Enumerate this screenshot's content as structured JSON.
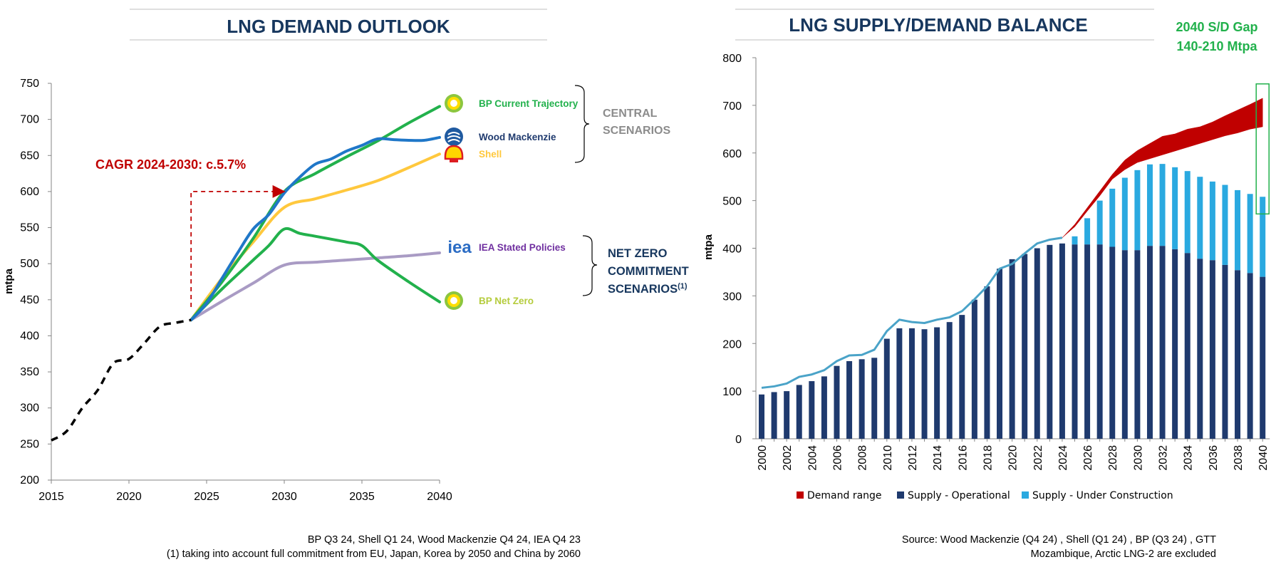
{
  "charts": [
    {
      "title": "LNG DEMAND OUTLOOK",
      "ylabel": "mtpa",
      "cagr_label": "CAGR 2024-2030: c.5.7%",
      "central_label": [
        "CENTRAL",
        "SCENARIOS"
      ],
      "netzero_label": [
        "NET ZERO",
        "COMMITMENT",
        "SCENARIOS",
        "(1)"
      ],
      "footnotes": [
        "BP Q3 24, Shell Q1 24, Wood Mackenzie Q4 24, IEA Q4 23",
        "(1) taking into account full commitment from EU, Japan, Korea by 2050 and China by 2060"
      ]
    },
    {
      "title": "LNG SUPPLY/DEMAND BALANCE",
      "ylabel": "mtpa",
      "gap_label": [
        "2040 S/D Gap",
        "140-210 Mtpa"
      ],
      "legend": [
        "Demand range",
        "Supply - Operational",
        "Supply - Under Construction"
      ],
      "footnotes": [
        "Source: Wood Mackenzie (Q4 24) , Shell (Q1 24) , BP (Q3 24) , GTT",
        "Mozambique, Arctic LNG-2 are excluded"
      ]
    }
  ],
  "chart_data": [
    {
      "type": "line",
      "title": "LNG DEMAND OUTLOOK",
      "xlabel": "",
      "ylabel": "mtpa",
      "xlim": [
        2015,
        2040
      ],
      "ylim": [
        200,
        750
      ],
      "xticks": [
        2015,
        2020,
        2025,
        2030,
        2035,
        2040
      ],
      "yticks": [
        200,
        250,
        300,
        350,
        400,
        450,
        500,
        550,
        600,
        650,
        700,
        750
      ],
      "grid": false,
      "series": [
        {
          "name": "",
          "style": "dashed",
          "color": "#000000",
          "x": [
            2015,
            2016,
            2017,
            2018,
            2019,
            2020,
            2021,
            2022,
            2023,
            2024
          ],
          "y": [
            255,
            268,
            300,
            325,
            362,
            368,
            390,
            413,
            418,
            422
          ]
        },
        {
          "name": "BP Current Trajectory",
          "color": "#22b14c",
          "x": [
            2024,
            2026,
            2028,
            2030,
            2032,
            2034,
            2036,
            2038,
            2040
          ],
          "y": [
            422,
            475,
            535,
            600,
            625,
            648,
            670,
            695,
            718
          ]
        },
        {
          "name": "Wood Mackenzie",
          "color": "#1f77c8",
          "x": [
            2024,
            2025,
            2026,
            2027,
            2028,
            2029,
            2030,
            2031,
            2032,
            2033,
            2034,
            2035,
            2036,
            2037,
            2038,
            2039,
            2040
          ],
          "y": [
            422,
            445,
            480,
            515,
            548,
            568,
            598,
            620,
            638,
            645,
            656,
            664,
            673,
            672,
            671,
            671,
            675
          ]
        },
        {
          "name": "Shell",
          "color": "#ffc83d",
          "x": [
            2024,
            2026,
            2028,
            2030,
            2032,
            2034,
            2036,
            2038,
            2040
          ],
          "y": [
            422,
            480,
            530,
            578,
            590,
            602,
            615,
            633,
            652
          ]
        },
        {
          "name": "IEA Stated Policies",
          "color": "#a99bc4",
          "x": [
            2024,
            2026,
            2028,
            2030,
            2032,
            2034,
            2036,
            2038,
            2040
          ],
          "y": [
            422,
            448,
            473,
            498,
            502,
            505,
            508,
            511,
            515
          ]
        },
        {
          "name": "BP Net Zero",
          "color": "#22b14c",
          "x": [
            2024,
            2026,
            2028,
            2029,
            2030,
            2031,
            2032,
            2034,
            2035,
            2036,
            2038,
            2040
          ],
          "y": [
            422,
            465,
            505,
            525,
            548,
            542,
            538,
            530,
            525,
            505,
            475,
            447
          ]
        }
      ],
      "annotations": [
        {
          "text": "CAGR 2024-2030: c.5.7%",
          "arrow_from": [
            2024,
            440
          ],
          "corner": [
            2024,
            600
          ],
          "arrow_to": [
            2030,
            600
          ]
        },
        {
          "text": "CENTRAL SCENARIOS",
          "groups": [
            "BP Current Trajectory",
            "Wood Mackenzie",
            "Shell"
          ]
        },
        {
          "text": "NET ZERO COMMITMENT SCENARIOS(1)",
          "groups": [
            "IEA Stated Policies",
            "BP Net Zero"
          ]
        }
      ]
    },
    {
      "type": "bar",
      "title": "LNG SUPPLY/DEMAND BALANCE",
      "xlabel": "",
      "ylabel": "mtpa",
      "ylim": [
        0,
        800
      ],
      "yticks": [
        0,
        100,
        200,
        300,
        400,
        500,
        600,
        700,
        800
      ],
      "stacked": true,
      "grid": false,
      "legend_position": "bottom",
      "categories": [
        2000,
        2001,
        2002,
        2003,
        2004,
        2005,
        2006,
        2007,
        2008,
        2009,
        2010,
        2011,
        2012,
        2013,
        2014,
        2015,
        2016,
        2017,
        2018,
        2019,
        2020,
        2021,
        2022,
        2023,
        2024,
        2025,
        2026,
        2027,
        2028,
        2029,
        2030,
        2031,
        2032,
        2033,
        2034,
        2035,
        2036,
        2037,
        2038,
        2039,
        2040
      ],
      "xticks": [
        2000,
        2002,
        2004,
        2006,
        2008,
        2010,
        2012,
        2014,
        2016,
        2018,
        2020,
        2022,
        2024,
        2026,
        2028,
        2030,
        2032,
        2034,
        2036,
        2038,
        2040
      ],
      "series": [
        {
          "name": "Supply - Operational",
          "color": "#1f3a6e",
          "values": [
            93,
            98,
            100,
            113,
            121,
            131,
            153,
            163,
            167,
            170,
            210,
            232,
            232,
            230,
            234,
            245,
            260,
            292,
            320,
            357,
            377,
            388,
            400,
            407,
            410,
            408,
            408,
            408,
            403,
            396,
            396,
            405,
            405,
            398,
            390,
            378,
            375,
            365,
            354,
            348,
            340
          ]
        },
        {
          "name": "Supply - Under Construction",
          "color": "#2aa9e0",
          "values": [
            0,
            0,
            0,
            0,
            0,
            0,
            0,
            0,
            0,
            0,
            0,
            0,
            0,
            0,
            0,
            0,
            0,
            0,
            0,
            0,
            0,
            0,
            0,
            0,
            0,
            17,
            55,
            92,
            122,
            152,
            168,
            171,
            172,
            172,
            172,
            172,
            165,
            168,
            168,
            166,
            168
          ]
        }
      ],
      "lines": [
        {
          "name": "",
          "color": "#4aa3c8",
          "x": [
            2000,
            2001,
            2002,
            2003,
            2004,
            2005,
            2006,
            2007,
            2008,
            2009,
            2010,
            2011,
            2012,
            2013,
            2014,
            2015,
            2016,
            2017,
            2018,
            2019,
            2020,
            2021,
            2022,
            2023,
            2024
          ],
          "y": [
            107,
            110,
            116,
            130,
            135,
            144,
            163,
            175,
            176,
            187,
            226,
            250,
            245,
            243,
            250,
            255,
            268,
            293,
            320,
            357,
            367,
            389,
            410,
            418,
            422
          ]
        }
      ],
      "demand_range": {
        "name": "Demand range",
        "color": "#c00000",
        "x": [
          2024,
          2025,
          2026,
          2027,
          2028,
          2029,
          2030,
          2031,
          2032,
          2033,
          2034,
          2035,
          2036,
          2037,
          2038,
          2039,
          2040
        ],
        "low": [
          422,
          445,
          478,
          510,
          545,
          565,
          580,
          588,
          596,
          604,
          612,
          620,
          628,
          636,
          642,
          650,
          655
        ],
        "high": [
          422,
          450,
          485,
          520,
          555,
          585,
          605,
          620,
          635,
          640,
          650,
          655,
          665,
          678,
          690,
          702,
          715
        ]
      },
      "annotations": [
        {
          "text": "2040 S/D Gap 140-210 Mtpa",
          "target": 2040
        }
      ]
    }
  ]
}
